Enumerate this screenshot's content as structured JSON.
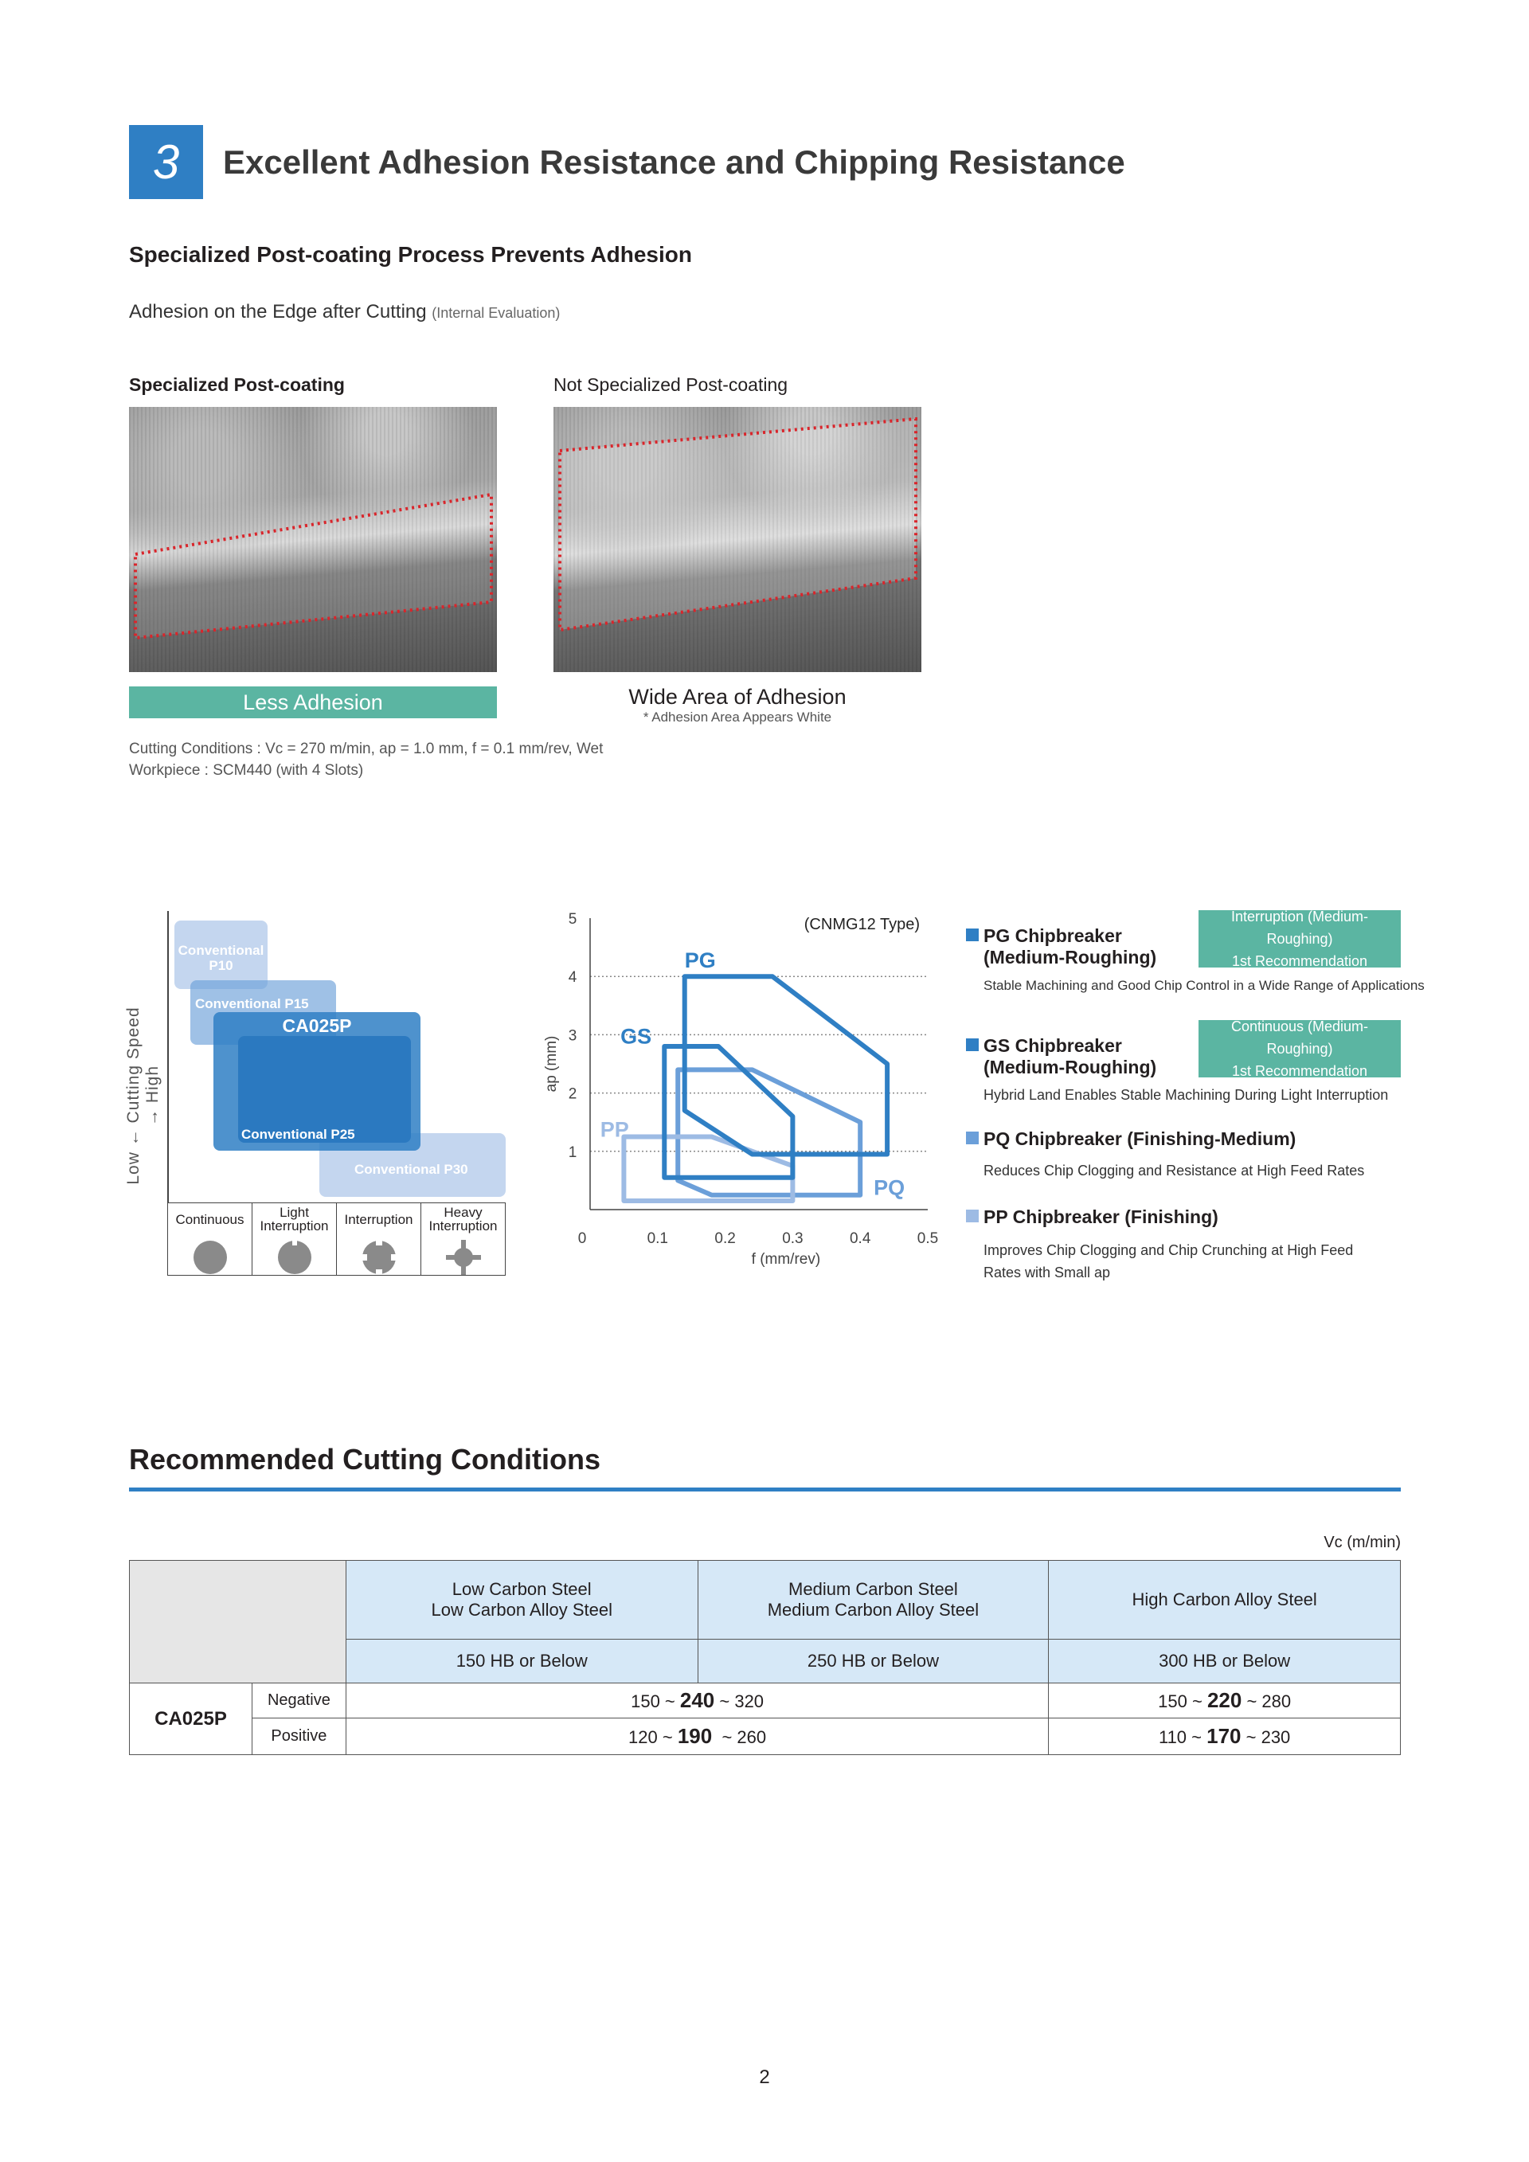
{
  "section": {
    "number": "3",
    "title": "Excellent Adhesion Resistance and Chipping Resistance"
  },
  "subtitle": "Specialized Post-coating Process Prevents Adhesion",
  "adhesion": {
    "heading": "Adhesion on the Edge after Cutting",
    "heading_note": "(Internal Evaluation)",
    "left_label": "Specialized Post-coating",
    "right_label": "Not Specialized Post-coating",
    "left_result": "Less Adhesion",
    "right_result": "Wide Area of Adhesion",
    "right_note": "* Adhesion Area Appears White",
    "conditions": "Cutting Conditions : Vc = 270 m/min, ap = 1.0 mm, f = 0.1 mm/rev, Wet",
    "workpiece": "Workpiece : SCM440 (with 4 Slots)"
  },
  "grade_map": {
    "y_label": "Low ← Cutting Speed → High",
    "grades": [
      "Conventional P10",
      "Conventional P15",
      "CA025P",
      "Conventional P25",
      "Conventional P30"
    ],
    "p10_line1": "Conventional",
    "p10_line2": "P10",
    "columns": [
      {
        "l1": "Continuous",
        "l2": ""
      },
      {
        "l1": "Light",
        "l2": "Interruption"
      },
      {
        "l1": "Interruption",
        "l2": ""
      },
      {
        "l1": "Heavy",
        "l2": "Interruption"
      }
    ]
  },
  "chart_data": {
    "type": "line",
    "title": "(CNMG12 Type)",
    "xlabel": "f (mm/rev)",
    "ylabel": "ap (mm)",
    "xlim": [
      0,
      0.5
    ],
    "ylim": [
      0,
      5
    ],
    "xticks": [
      "0",
      "0.1",
      "0.2",
      "0.3",
      "0.4",
      "0.5"
    ],
    "yticks": [
      "1",
      "2",
      "3",
      "4",
      "5"
    ],
    "grid": "horizontal dotted",
    "series": [
      {
        "name": "PQ",
        "color": "#6b9fd9",
        "points": [
          [
            0.13,
            2.4
          ],
          [
            0.24,
            2.4
          ],
          [
            0.4,
            1.5
          ],
          [
            0.4,
            0.25
          ],
          [
            0.18,
            0.25
          ],
          [
            0.13,
            0.5
          ]
        ]
      },
      {
        "name": "PP",
        "color": "#9dbbe4",
        "points": [
          [
            0.05,
            1.25
          ],
          [
            0.18,
            1.25
          ],
          [
            0.3,
            0.75
          ],
          [
            0.3,
            0.15
          ],
          [
            0.05,
            0.15
          ]
        ]
      },
      {
        "name": "GS",
        "color": "#2f7fc4",
        "points": [
          [
            0.11,
            2.8
          ],
          [
            0.19,
            2.8
          ],
          [
            0.3,
            1.6
          ],
          [
            0.3,
            0.55
          ],
          [
            0.11,
            0.55
          ]
        ]
      },
      {
        "name": "PG",
        "color": "#2f7fc4",
        "points": [
          [
            0.14,
            4
          ],
          [
            0.27,
            4
          ],
          [
            0.44,
            2.5
          ],
          [
            0.44,
            0.95
          ],
          [
            0.24,
            0.95
          ],
          [
            0.14,
            1.7
          ]
        ]
      }
    ]
  },
  "legend": [
    {
      "title": "PG Chipbreaker",
      "title2": "(Medium-Roughing)",
      "desc": "Stable Machining and Good Chip Control in a Wide Range of Applications",
      "tag1": "Interruption (Medium-Roughing)",
      "tag2": "1st Recommendation",
      "color": "#2f7fc4"
    },
    {
      "title": "GS Chipbreaker",
      "title2": "(Medium-Roughing)",
      "desc": "Hybrid Land Enables Stable Machining During Light Interruption",
      "tag1": "Continuous (Medium-Roughing)",
      "tag2": "1st Recommendation",
      "color": "#2f7fc4"
    },
    {
      "title": "PQ Chipbreaker (Finishing-Medium)",
      "desc": "Reduces Chip Clogging and Resistance at High Feed Rates",
      "color": "#6b9fd9"
    },
    {
      "title": "PP Chipbreaker (Finishing)",
      "desc": "Improves Chip Clogging and Chip Crunching at High Feed",
      "desc2": "Rates with Small ap",
      "color": "#9dbbe4"
    }
  ],
  "conditions": {
    "title": "Recommended Cutting Conditions",
    "unit": "Vc (m/min)",
    "materials": [
      {
        "l1": "Low Carbon Steel",
        "l2": "Low Carbon Alloy Steel",
        "hb": "150 HB or Below"
      },
      {
        "l1": "Medium Carbon Steel",
        "l2": "Medium Carbon Alloy Steel",
        "hb": "250 HB or Below"
      },
      {
        "l1": "High Carbon Alloy Steel",
        "hb": "300 HB or Below"
      }
    ],
    "grade": "CA025P",
    "rows": [
      {
        "type": "Negative",
        "a_min": "150 ~ ",
        "a_mid": "240",
        "a_max": " ~ 320",
        "b_min": "150 ~ ",
        "b_mid": "220",
        "b_max": " ~ 280"
      },
      {
        "type": "Positive",
        "a_min": "120 ~ ",
        "a_mid": "190",
        "a_max": "  ~ 260",
        "b_min": "110 ~ ",
        "b_mid": "170",
        "b_max": " ~ 230"
      }
    ]
  },
  "page_number": "2"
}
